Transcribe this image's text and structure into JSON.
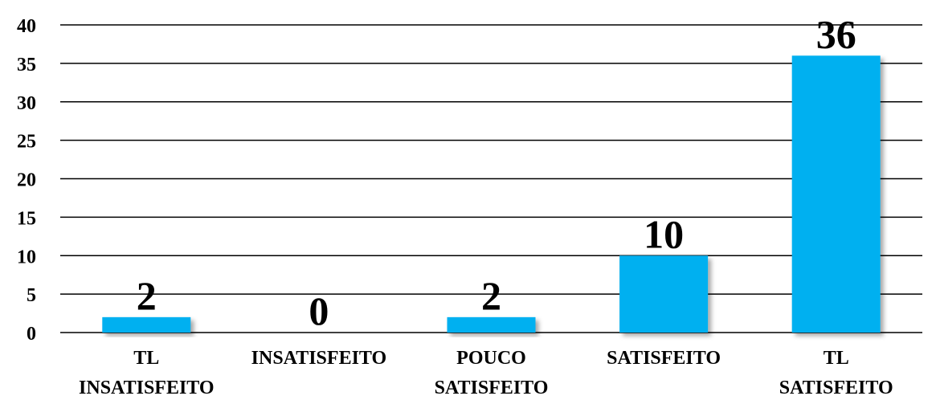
{
  "chart_data": {
    "type": "bar",
    "categories": [
      [
        "TL",
        "INSATISFEITO"
      ],
      [
        "INSATISFEITO"
      ],
      [
        "POUCO",
        "SATISFEITO"
      ],
      [
        "SATISFEITO"
      ],
      [
        "TL",
        "SATISFEITO"
      ]
    ],
    "values": [
      2,
      0,
      2,
      10,
      36
    ],
    "data_labels": [
      "2",
      "0",
      "2",
      "10",
      "36"
    ],
    "y_ticks": [
      "0",
      "5",
      "10",
      "15",
      "20",
      "25",
      "30",
      "35",
      "40"
    ],
    "ylim": [
      0,
      40
    ],
    "grid": true,
    "bar_color": "#00B0F0",
    "title": "",
    "xlabel": "",
    "ylabel": ""
  }
}
